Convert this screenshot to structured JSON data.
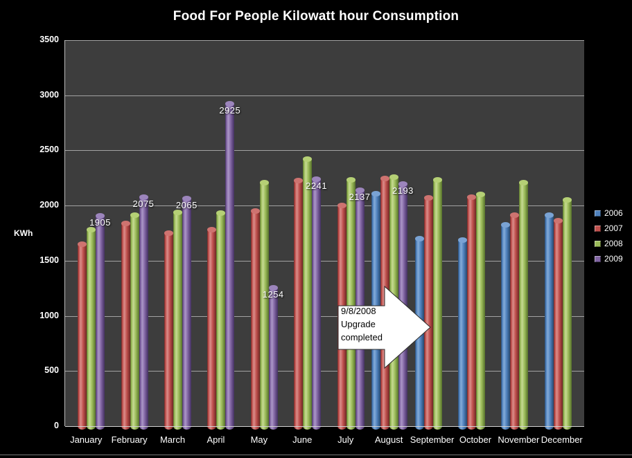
{
  "title": "Food For People Kilowatt hour Consumption",
  "y_axis": {
    "label": "KWh",
    "ticks": [
      0,
      500,
      1000,
      1500,
      2000,
      2500,
      3000,
      3500
    ],
    "max": 3500
  },
  "x_axis": {
    "categories": [
      "January",
      "February",
      "March",
      "April",
      "May",
      "June",
      "July",
      "August",
      "September",
      "October",
      "November",
      "December"
    ]
  },
  "legend": {
    "position": "right",
    "items": [
      "2006",
      "2007",
      "2008",
      "2009"
    ]
  },
  "annotation": {
    "lines": [
      "9/8/2008",
      "Upgrade",
      "completed"
    ]
  },
  "colors": {
    "series_2006": "#4F81BD",
    "series_2007": "#C0504D",
    "series_2008": "#9BBB59",
    "series_2009": "#8064A2",
    "plot_background": "#3D3D3D",
    "page_background": "#000000",
    "gridline": "#A3A3A3",
    "text": "#FFFFFF",
    "annotation_fill": "#FFFFFF",
    "annotation_text": "#000000"
  },
  "chart_data": {
    "type": "bar",
    "title": "Food For People Kilowatt hour Consumption",
    "xlabel": "",
    "ylabel": "KWh",
    "ylim": [
      0,
      3500
    ],
    "grid": true,
    "legend_position": "right",
    "categories": [
      "January",
      "February",
      "March",
      "April",
      "May",
      "June",
      "July",
      "August",
      "September",
      "October",
      "November",
      "December"
    ],
    "series": [
      {
        "name": "2006",
        "color": "#4F81BD",
        "values": [
          null,
          null,
          null,
          null,
          null,
          null,
          null,
          2110,
          1700,
          1690,
          1825,
          1910
        ]
      },
      {
        "name": "2007",
        "color": "#C0504D",
        "values": [
          1650,
          1840,
          1750,
          1780,
          1950,
          2225,
          2000,
          2245,
          2070,
          2075,
          1915,
          1860
        ]
      },
      {
        "name": "2008",
        "color": "#9BBB59",
        "values": [
          1780,
          1915,
          1940,
          1935,
          2210,
          2420,
          2235,
          2255,
          2230,
          2100,
          2210,
          2050
        ]
      },
      {
        "name": "2009",
        "color": "#8064A2",
        "values": [
          1905,
          2075,
          2065,
          2925,
          1254,
          2241,
          2137,
          2193,
          null,
          null,
          null,
          null
        ],
        "show_labels": true
      }
    ],
    "data_labels": {
      "series": "2009",
      "values": [
        1905,
        2075,
        2065,
        2925,
        1254,
        2241,
        2137,
        2193
      ]
    },
    "annotation": {
      "text": "9/8/2008 Upgrade completed",
      "arrow_direction": "right",
      "points_at": "September"
    }
  }
}
